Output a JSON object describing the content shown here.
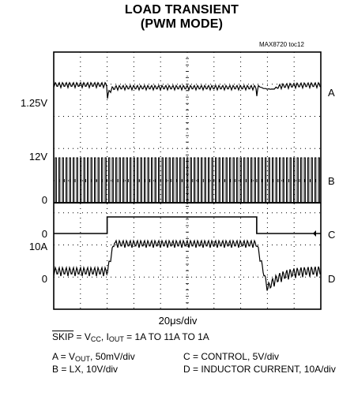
{
  "chart_data": {
    "type": "line",
    "title": "LOAD TRANSIENT",
    "subtitle": "(PWM MODE)",
    "figure_id": "MAX8720 toc12",
    "xlabel": "20μs/div",
    "grid": true,
    "grid_divisions": {
      "x": 10,
      "y": 8
    },
    "y_labels": {
      "a_level": "1.25V",
      "b_high": "12V",
      "b_zero": "0",
      "c_zero": "0",
      "d_high": "10A",
      "d_zero": "0"
    },
    "series": [
      {
        "name": "A",
        "description": "VOUT",
        "scale": "50mV/div",
        "x_div": [
          0,
          10
        ]
      },
      {
        "name": "B",
        "description": "LX",
        "scale": "10V/div",
        "x_div": [
          0,
          10
        ]
      },
      {
        "name": "C",
        "description": "CONTROL",
        "scale": "5V/div",
        "step_up_div": 2.0,
        "step_down_div": 7.6
      },
      {
        "name": "D",
        "description": "INDUCTOR CURRENT",
        "scale": "10A/div",
        "step_up_div": 2.0,
        "step_down_div": 7.6
      }
    ],
    "conditions": {
      "skip": "SKIP",
      "eq1": " = V",
      "cc": "CC",
      "comma": ", I",
      "out": "OUT",
      "rest": " = 1A TO 11A TO 1A"
    },
    "legend": {
      "a_prefix": "A = V",
      "a_sub": "OUT",
      "a_rest": ", 50mV/div",
      "b": "B = LX, 10V/div",
      "c": "C = CONTROL, 5V/div",
      "d": "D = INDUCTOR CURRENT, 10A/div"
    }
  }
}
